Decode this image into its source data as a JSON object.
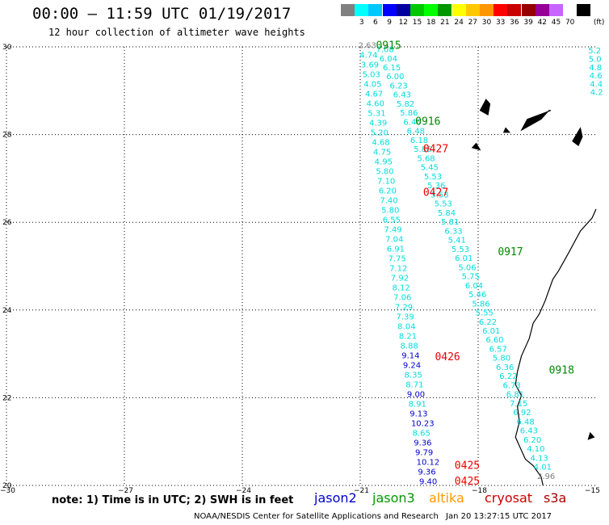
{
  "header": {
    "title": "00:00 – 11:59 UTC 01/19/2017",
    "subtitle": "12 hour collection of altimeter wave heights"
  },
  "legend": {
    "unit": "(ft)",
    "swatches": [
      {
        "label": "",
        "color": "#808080"
      },
      {
        "label": "3",
        "color": "#00ffff"
      },
      {
        "label": "6",
        "color": "#00c8ff"
      },
      {
        "label": "9",
        "color": "#0000ff"
      },
      {
        "label": "12",
        "color": "#0000a0"
      },
      {
        "label": "15",
        "color": "#00c800"
      },
      {
        "label": "18",
        "color": "#00ff00"
      },
      {
        "label": "21",
        "color": "#009600"
      },
      {
        "label": "24",
        "color": "#ffff00"
      },
      {
        "label": "27",
        "color": "#ffc800"
      },
      {
        "label": "30",
        "color": "#ff9600"
      },
      {
        "label": "33",
        "color": "#ff0000"
      },
      {
        "label": "36",
        "color": "#c80000"
      },
      {
        "label": "39",
        "color": "#960000"
      },
      {
        "label": "42",
        "color": "#960096"
      },
      {
        "label": "45",
        "color": "#c864ff"
      },
      {
        "label": "70",
        "color": "#ffffff"
      },
      {
        "label": "",
        "color": "#000000"
      }
    ]
  },
  "axes": {
    "lat_labels": [
      "30",
      "28",
      "26",
      "24",
      "22",
      "20"
    ],
    "lon_labels": [
      "−30",
      "−27",
      "−24",
      "−21",
      "−18",
      "−15"
    ]
  },
  "notes": {
    "text": "note: 1) Time is in UTC; 2) SWH is in feet",
    "sat_jason2": "jason2",
    "sat_jason3": "jason3",
    "sat_altika": "altika",
    "sat_cryosat": "cryosat",
    "sat_s3a": "s3a"
  },
  "footer": {
    "credit": "NOAA/NESDIS Center for Satellite Applications and Research",
    "timestamp": "Jan 20 13:27:15 UTC 2017"
  },
  "colors": {
    "cyan": "#00dddd",
    "blue": "#0000cc",
    "gray": "#808080",
    "green": "#008800",
    "red": "#ee0000"
  },
  "tracks": {
    "track_a": [
      "2.63",
      "4.74",
      "3.69",
      "5.03",
      "4.05",
      "4.67",
      "4.60",
      "5.31",
      "4.39",
      "5.20",
      "4.68",
      "4.75",
      "4.95",
      "5.80",
      "7.10",
      "6.20",
      "7.40",
      "5.80",
      "6.55",
      "7.49",
      "7.04",
      "6.91",
      "7.75",
      "7.12",
      "7.92",
      "8.12",
      "7.06",
      "7.29",
      "7.39",
      "8.04",
      "8.21",
      "8.88",
      "9.14",
      "9.24",
      "8.35",
      "8.71",
      "9.00",
      "8.91",
      "9.13",
      "10.23",
      "8.65",
      "9.36",
      "9.79",
      "10.12",
      "9.36",
      "9.40"
    ],
    "track_b": [
      "7.08",
      "6.04",
      "6.15",
      "6.00",
      "6.23",
      "6.43",
      "5.82",
      "5.86",
      "6.40",
      "6.48",
      "6.18",
      "5.86",
      "5.68",
      "5.45",
      "5.53",
      "5.36",
      "5.53",
      "5.53",
      "5.84",
      "5.81",
      "6.33",
      "5.41",
      "5.53",
      "6.01",
      "5.06",
      "5.75",
      "6.04",
      "5.46",
      "5.86",
      "5.55",
      "6.22",
      "6.01",
      "6.60",
      "6.57",
      "5.80",
      "6.36",
      "6.22",
      "6.73",
      "6.81",
      "7.15",
      "6.92",
      "6.48",
      "6.43",
      "6.20",
      "4.10",
      "4.13",
      "4.01",
      "2.96"
    ],
    "track_c": [
      "5.2",
      "5.0",
      "4.8",
      "4.6",
      "4.4",
      "4.2"
    ]
  },
  "time_labels": [
    {
      "text": "0915",
      "lon": -20.6,
      "lat": 29.95,
      "color": "green"
    },
    {
      "text": "0916",
      "lon": -19.6,
      "lat": 28.22,
      "color": "green"
    },
    {
      "text": "0427",
      "lon": -19.4,
      "lat": 27.6,
      "color": "red"
    },
    {
      "text": "0427",
      "lon": -19.4,
      "lat": 26.6,
      "color": "red"
    },
    {
      "text": "0917",
      "lon": -17.5,
      "lat": 25.25,
      "color": "green"
    },
    {
      "text": "0426",
      "lon": -19.1,
      "lat": 22.85,
      "color": "red"
    },
    {
      "text": "0918",
      "lon": -16.2,
      "lat": 22.55,
      "color": "green"
    },
    {
      "text": "0425",
      "lon": -18.6,
      "lat": 20.38,
      "color": "red"
    },
    {
      "text": "0425",
      "lon": -18.6,
      "lat": 20.02,
      "color": "red"
    }
  ]
}
